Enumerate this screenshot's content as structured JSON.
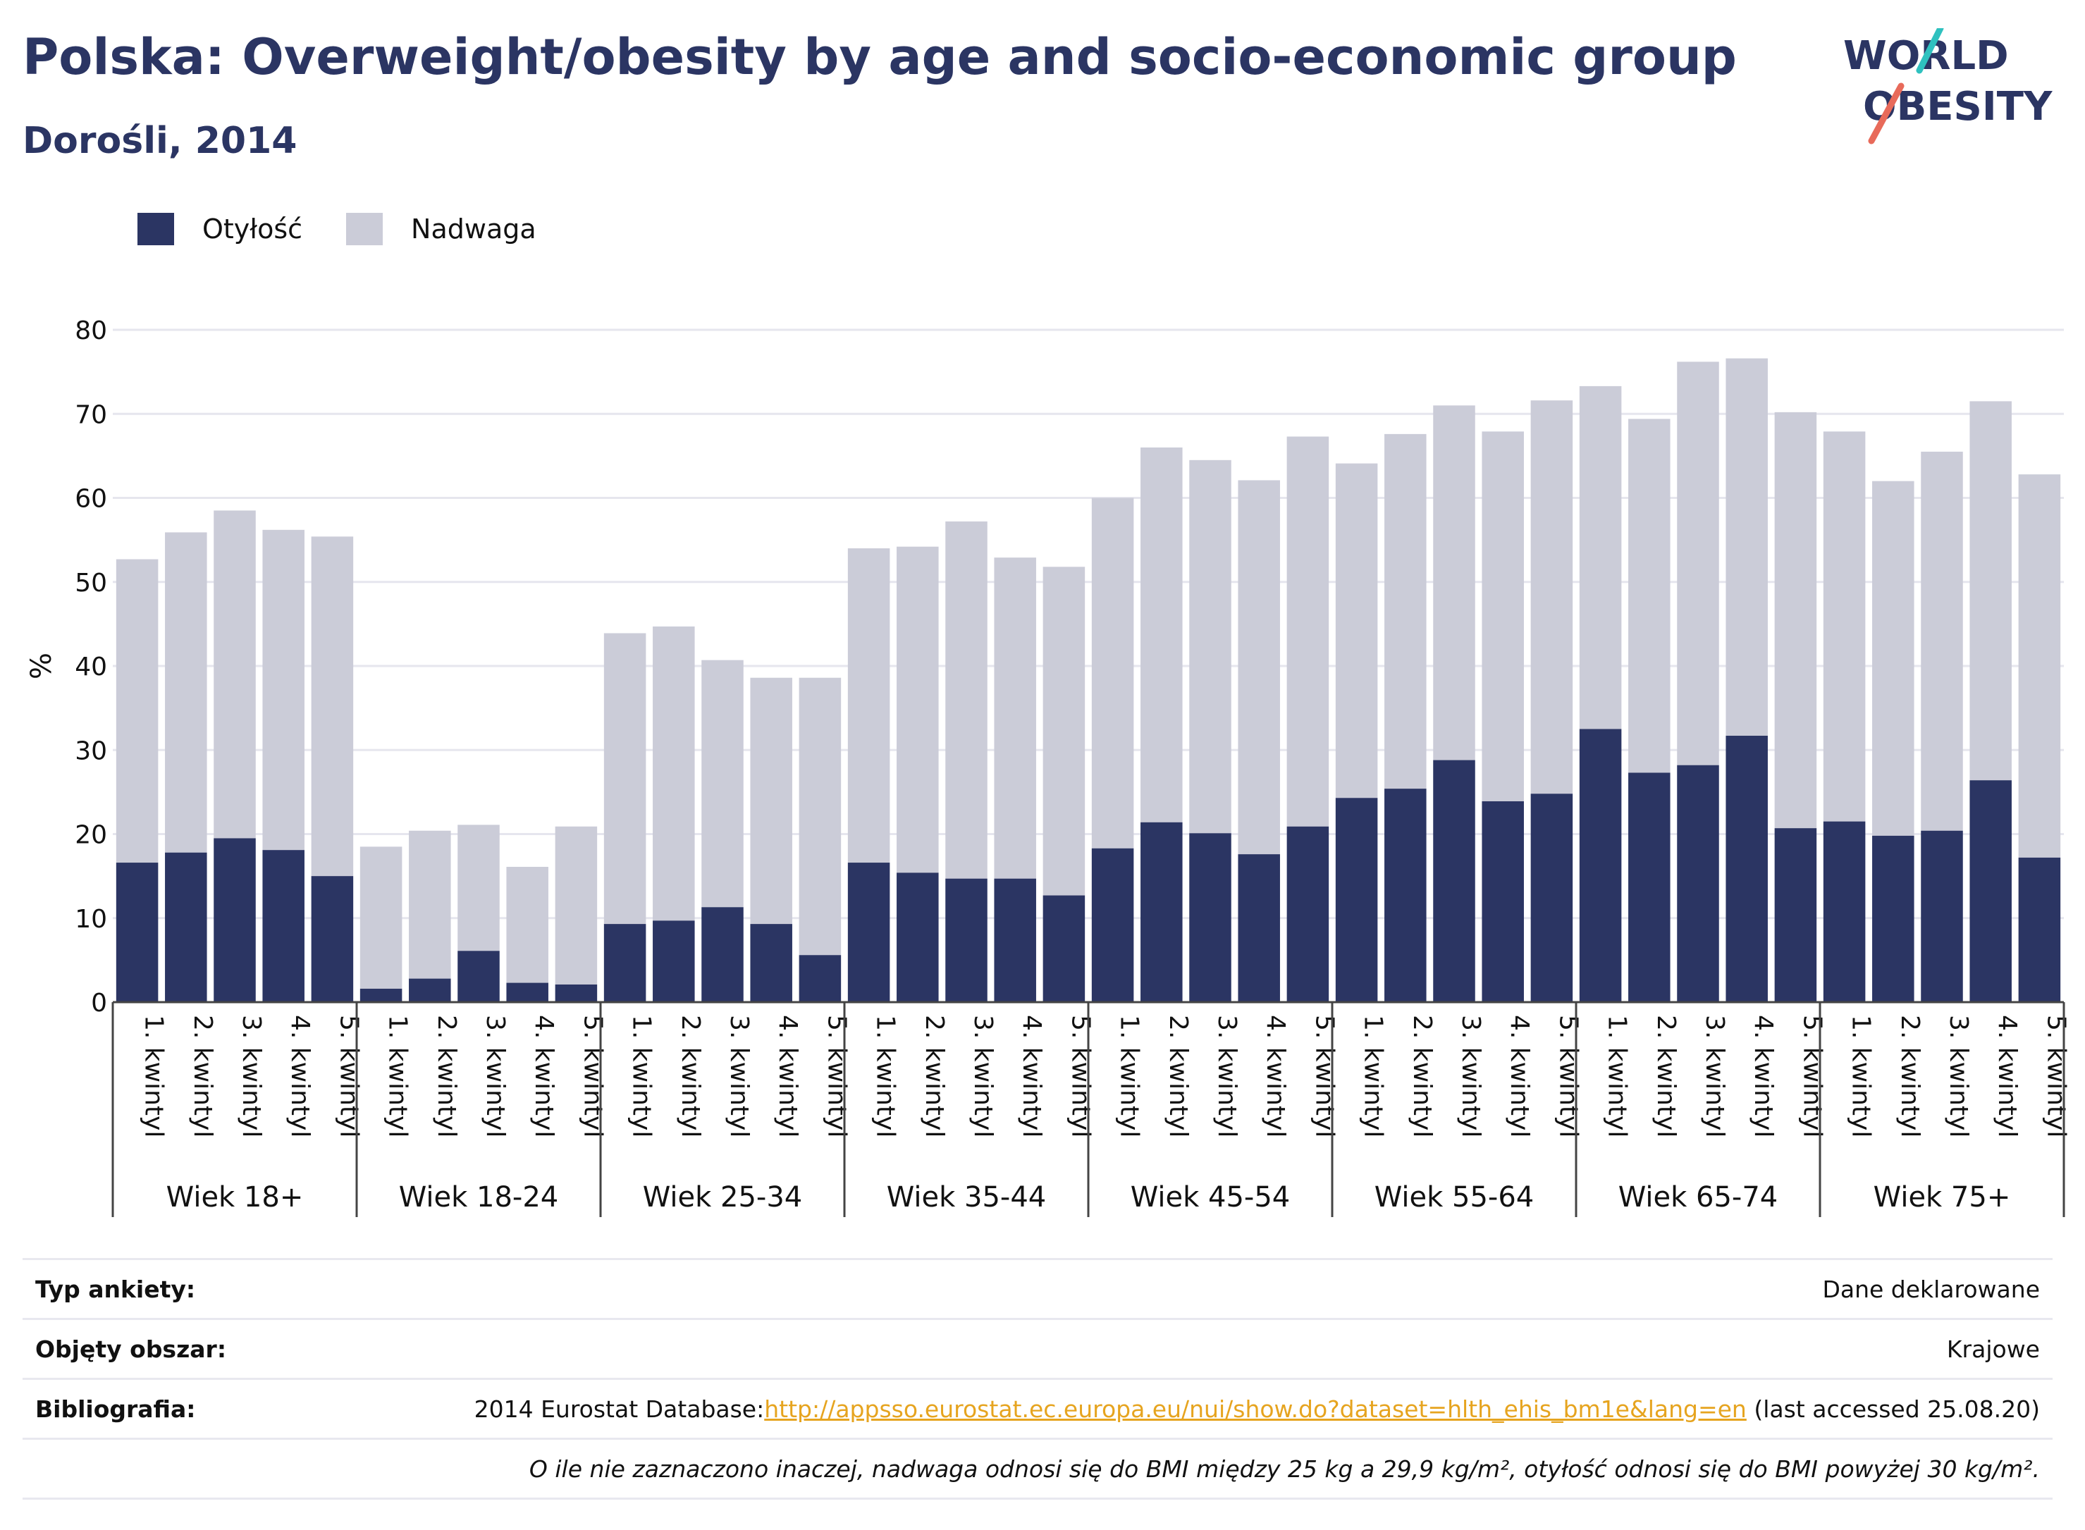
{
  "header": {
    "title": "Polska: Overweight/obesity by age and socio-economic group",
    "subtitle": "Dorośli, 2014"
  },
  "logo": {
    "line1": "WORLD",
    "line2": "OBESITY",
    "text_color": "#2b3563",
    "slash_colors": [
      "#2fc1bf",
      "#e86a5a"
    ]
  },
  "legend": [
    {
      "label": "Otyłość",
      "color": "#2b3563"
    },
    {
      "label": "Nadwaga",
      "color": "#cbccd8"
    }
  ],
  "chart_data": {
    "type": "bar",
    "stacked": true,
    "ylabel": "%",
    "ylim": [
      0,
      80
    ],
    "yticks": [
      0,
      10,
      20,
      30,
      40,
      50,
      60,
      70,
      80
    ],
    "grid": true,
    "legend_position": "top-left",
    "category_labels": [
      "1. kwintyl",
      "2. kwintyl",
      "3. kwintyl",
      "4. kwintyl",
      "5. kwintyl"
    ],
    "groups": [
      {
        "name": "Wiek 18+",
        "obesity": [
          16.6,
          17.8,
          19.5,
          18.1,
          15.0
        ],
        "overweight": [
          36.1,
          38.1,
          39.0,
          38.1,
          40.4
        ]
      },
      {
        "name": "Wiek 18-24",
        "obesity": [
          1.6,
          2.8,
          6.1,
          2.3,
          2.1
        ],
        "overweight": [
          16.9,
          17.6,
          15.0,
          13.8,
          18.8
        ]
      },
      {
        "name": "Wiek 25-34",
        "obesity": [
          9.3,
          9.7,
          11.3,
          9.3,
          5.6
        ],
        "overweight": [
          34.6,
          35.0,
          29.4,
          29.3,
          33.0
        ]
      },
      {
        "name": "Wiek 35-44",
        "obesity": [
          16.6,
          15.4,
          14.7,
          14.7,
          12.7
        ],
        "overweight": [
          37.4,
          38.8,
          42.5,
          38.2,
          39.1
        ]
      },
      {
        "name": "Wiek 45-54",
        "obesity": [
          18.3,
          21.4,
          20.1,
          17.6,
          20.9
        ],
        "overweight": [
          41.7,
          44.6,
          44.4,
          44.5,
          46.4
        ]
      },
      {
        "name": "Wiek 55-64",
        "obesity": [
          24.3,
          25.4,
          28.8,
          23.9,
          24.8
        ],
        "overweight": [
          39.8,
          42.2,
          42.2,
          44.0,
          46.8
        ]
      },
      {
        "name": "Wiek 65-74",
        "obesity": [
          32.5,
          27.3,
          28.2,
          31.7,
          20.7
        ],
        "overweight": [
          40.8,
          42.1,
          48.0,
          44.9,
          49.5
        ]
      },
      {
        "name": "Wiek 75+",
        "obesity": [
          21.5,
          19.8,
          20.4,
          26.4,
          17.2
        ],
        "overweight": [
          46.4,
          42.2,
          45.1,
          45.1,
          45.6
        ]
      }
    ]
  },
  "info": {
    "survey_label": "Typ ankiety:",
    "survey_value": "Dane deklarowane",
    "area_label": "Objęty obszar:",
    "area_value": "Krajowe",
    "biblio_label": "Bibliografia:",
    "biblio_prefix": "2014 Eurostat Database:",
    "biblio_link": "http://appsso.eurostat.ec.europa.eu/nui/show.do?dataset=hlth_ehis_bm1e&lang=en",
    "biblio_suffix": " (last accessed 25.08.20)",
    "note": "O ile nie zaznaczono inaczej, nadwaga odnosi się do BMI między 25 kg a 29,9 kg/m², otyłość odnosi się do BMI powyżej 30 kg/m²."
  }
}
